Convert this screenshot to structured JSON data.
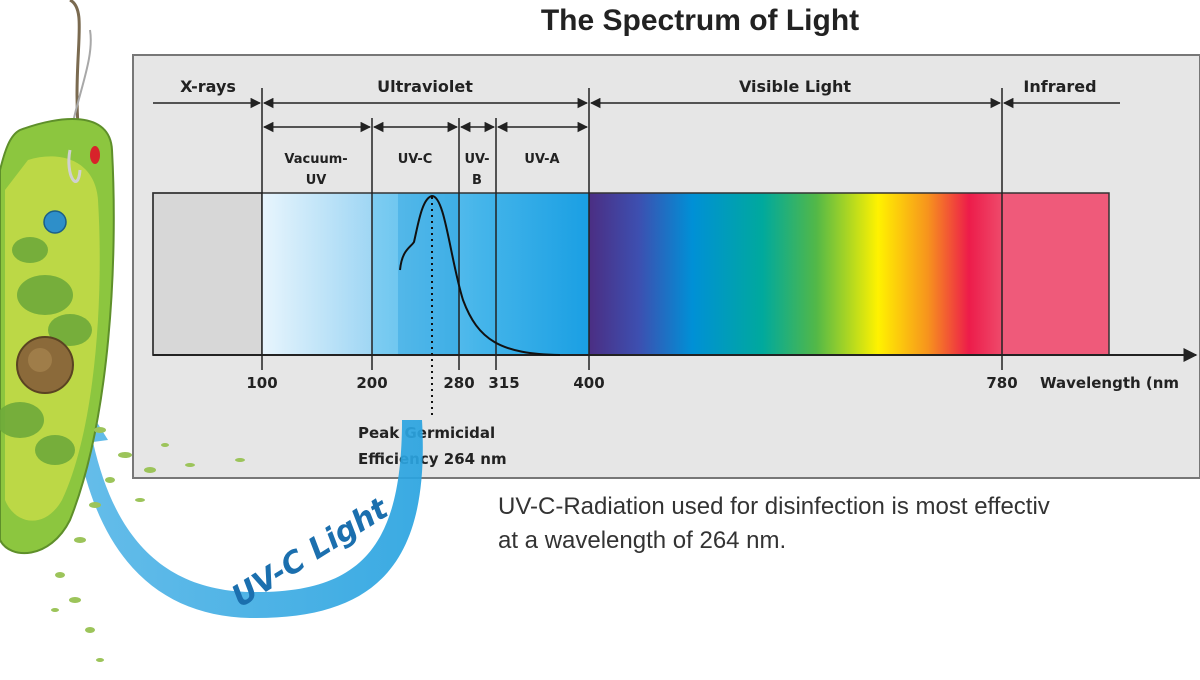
{
  "title": "The Spectrum of Light",
  "regions": {
    "xrays": "X-rays",
    "ultraviolet": "Ultraviolet",
    "visible": "Visible Light",
    "infrared": "Infrared"
  },
  "sub_bands": {
    "vuv_line1": "Vacuum-",
    "vuv_line2": "UV",
    "uvc": "UV-C",
    "uvb_line1": "UV-",
    "uvb_line2": "B",
    "uva": "UV-A"
  },
  "axis": {
    "ticks": [
      "100",
      "200",
      "280",
      "315",
      "400",
      "780"
    ],
    "label": "Wavelength (nm"
  },
  "peak": {
    "line1": "Peak Germicidal",
    "line2": "Efficiency 264 nm"
  },
  "description": {
    "line1": "UV-C-Radiation used for disinfection is most effectiv",
    "line2": "at a wavelength of 264 nm."
  },
  "arrow_label": "UV-C Light",
  "colors": {
    "panel": "#e6e6e6",
    "uv_blue": "#2aa8e6",
    "arrow_blue": "#29a3e0",
    "infrared": "#ef5a7a",
    "cell_green": "#8cc63f"
  }
}
